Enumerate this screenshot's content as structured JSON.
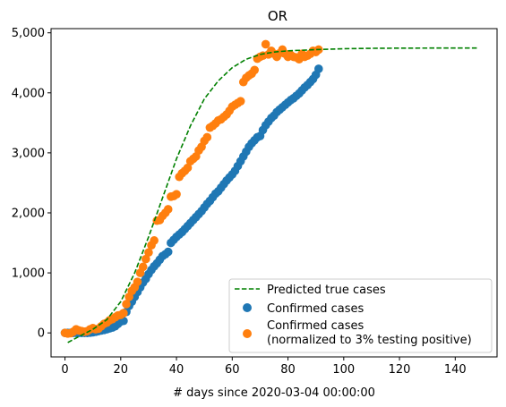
{
  "chart_data": {
    "type": "scatter",
    "title": "OR",
    "xlabel": "# days since 2020-03-04 00:00:00",
    "ylabel": "",
    "xlim": [
      -5,
      155
    ],
    "ylim": [
      -400,
      5070
    ],
    "x_ticks": [
      0,
      20,
      40,
      60,
      80,
      100,
      120,
      140
    ],
    "x_tick_labels": [
      "0",
      "20",
      "40",
      "60",
      "80",
      "100",
      "120",
      "140"
    ],
    "y_ticks": [
      0,
      1000,
      2000,
      3000,
      4000,
      5000
    ],
    "y_tick_labels": [
      "0",
      "1,000",
      "2,000",
      "3,000",
      "4,000",
      "5,000"
    ],
    "grid": false,
    "legend_position": "lower-right",
    "colors": {
      "predicted": "#008000",
      "confirmed": "#1f77b4",
      "normalized": "#ff7f0e"
    },
    "series": [
      {
        "name": "Predicted true cases",
        "type": "line",
        "style": "dashed",
        "x": [
          1,
          5,
          10,
          15,
          20,
          25,
          30,
          35,
          40,
          45,
          50,
          55,
          60,
          65,
          70,
          75,
          80,
          90,
          100,
          110,
          120,
          130,
          140,
          148
        ],
        "y": [
          -160,
          -60,
          60,
          220,
          520,
          1000,
          1600,
          2250,
          2900,
          3450,
          3900,
          4200,
          4420,
          4560,
          4640,
          4680,
          4700,
          4720,
          4735,
          4742,
          4745,
          4746,
          4747,
          4747
        ]
      },
      {
        "name": "Confirmed cases",
        "type": "scatter",
        "x": [
          0,
          1,
          2,
          3,
          4,
          5,
          6,
          7,
          8,
          9,
          10,
          11,
          12,
          13,
          14,
          15,
          16,
          17,
          18,
          19,
          20,
          21,
          22,
          23,
          24,
          25,
          26,
          27,
          28,
          29,
          30,
          31,
          32,
          33,
          34,
          35,
          36,
          37,
          38,
          39,
          40,
          41,
          42,
          43,
          44,
          45,
          46,
          47,
          48,
          49,
          50,
          51,
          52,
          53,
          54,
          55,
          56,
          57,
          58,
          59,
          60,
          61,
          62,
          63,
          64,
          65,
          66,
          67,
          68,
          69,
          70,
          71,
          72,
          73,
          74,
          75,
          76,
          77,
          78,
          79,
          80,
          81,
          82,
          83,
          84,
          85,
          86,
          87,
          88,
          89,
          90,
          91
        ],
        "y": [
          0,
          0,
          0,
          0,
          0,
          0,
          0,
          0,
          0,
          5,
          10,
          20,
          30,
          40,
          50,
          60,
          75,
          90,
          110,
          150,
          190,
          200,
          350,
          450,
          520,
          600,
          680,
          760,
          840,
          900,
          980,
          1050,
          1110,
          1160,
          1220,
          1280,
          1310,
          1350,
          1500,
          1550,
          1600,
          1640,
          1680,
          1730,
          1780,
          1830,
          1880,
          1930,
          1980,
          2030,
          2090,
          2150,
          2200,
          2260,
          2320,
          2360,
          2420,
          2480,
          2540,
          2590,
          2640,
          2700,
          2780,
          2860,
          2940,
          3020,
          3100,
          3160,
          3210,
          3260,
          3280,
          3380,
          3460,
          3520,
          3580,
          3620,
          3680,
          3720,
          3760,
          3800,
          3840,
          3880,
          3910,
          3950,
          3990,
          4040,
          4090,
          4130,
          4180,
          4230,
          4300,
          4400
        ]
      },
      {
        "name": "Confirmed cases\n(normalized to 3% testing positive)",
        "type": "scatter",
        "x": [
          0,
          1,
          2,
          3,
          4,
          5,
          6,
          7,
          8,
          9,
          10,
          11,
          12,
          13,
          14,
          15,
          16,
          17,
          18,
          19,
          20,
          21,
          22,
          23,
          24,
          25,
          26,
          27,
          28,
          29,
          30,
          31,
          32,
          33,
          34,
          35,
          36,
          37,
          38,
          39,
          40,
          41,
          42,
          43,
          44,
          45,
          46,
          47,
          48,
          49,
          50,
          51,
          52,
          53,
          54,
          55,
          56,
          57,
          58,
          59,
          60,
          61,
          62,
          63,
          64,
          65,
          66,
          67,
          68,
          69,
          70,
          71,
          72,
          73,
          74,
          75,
          76,
          77,
          78,
          79,
          80,
          81,
          82,
          83,
          84,
          85,
          86,
          87,
          88,
          89,
          90,
          91
        ],
        "y": [
          0,
          -10,
          -5,
          20,
          60,
          40,
          30,
          20,
          30,
          60,
          80,
          60,
          70,
          110,
          150,
          170,
          210,
          230,
          260,
          290,
          300,
          330,
          480,
          600,
          700,
          760,
          850,
          1000,
          1100,
          1230,
          1340,
          1460,
          1540,
          1870,
          1880,
          1950,
          2000,
          2060,
          2270,
          2280,
          2310,
          2600,
          2660,
          2700,
          2750,
          2860,
          2900,
          2940,
          3040,
          3100,
          3200,
          3260,
          3420,
          3450,
          3490,
          3540,
          3560,
          3600,
          3640,
          3700,
          3770,
          3800,
          3830,
          3860,
          4180,
          4250,
          4290,
          4320,
          4380,
          4570,
          4600,
          4620,
          4810,
          4640,
          4700,
          4650,
          4600,
          4660,
          4720,
          4650,
          4600,
          4630,
          4600,
          4590,
          4560,
          4650,
          4600,
          4620,
          4650,
          4700,
          4680,
          4720
        ]
      }
    ]
  }
}
